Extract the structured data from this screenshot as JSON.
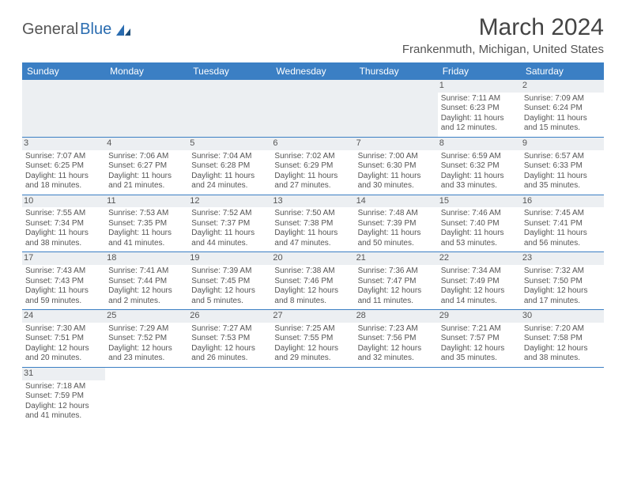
{
  "logo": {
    "part1": "General",
    "part2": "Blue"
  },
  "title": "March 2024",
  "location": "Frankenmuth, Michigan, United States",
  "header_bg": "#3b7fc4",
  "header_fg": "#ffffff",
  "daynum_bg": "#eceff2",
  "columns": [
    "Sunday",
    "Monday",
    "Tuesday",
    "Wednesday",
    "Thursday",
    "Friday",
    "Saturday"
  ],
  "weeks": [
    [
      null,
      null,
      null,
      null,
      null,
      {
        "n": "1",
        "sr": "Sunrise: 7:11 AM",
        "ss": "Sunset: 6:23 PM",
        "d1": "Daylight: 11 hours",
        "d2": "and 12 minutes."
      },
      {
        "n": "2",
        "sr": "Sunrise: 7:09 AM",
        "ss": "Sunset: 6:24 PM",
        "d1": "Daylight: 11 hours",
        "d2": "and 15 minutes."
      }
    ],
    [
      {
        "n": "3",
        "sr": "Sunrise: 7:07 AM",
        "ss": "Sunset: 6:25 PM",
        "d1": "Daylight: 11 hours",
        "d2": "and 18 minutes."
      },
      {
        "n": "4",
        "sr": "Sunrise: 7:06 AM",
        "ss": "Sunset: 6:27 PM",
        "d1": "Daylight: 11 hours",
        "d2": "and 21 minutes."
      },
      {
        "n": "5",
        "sr": "Sunrise: 7:04 AM",
        "ss": "Sunset: 6:28 PM",
        "d1": "Daylight: 11 hours",
        "d2": "and 24 minutes."
      },
      {
        "n": "6",
        "sr": "Sunrise: 7:02 AM",
        "ss": "Sunset: 6:29 PM",
        "d1": "Daylight: 11 hours",
        "d2": "and 27 minutes."
      },
      {
        "n": "7",
        "sr": "Sunrise: 7:00 AM",
        "ss": "Sunset: 6:30 PM",
        "d1": "Daylight: 11 hours",
        "d2": "and 30 minutes."
      },
      {
        "n": "8",
        "sr": "Sunrise: 6:59 AM",
        "ss": "Sunset: 6:32 PM",
        "d1": "Daylight: 11 hours",
        "d2": "and 33 minutes."
      },
      {
        "n": "9",
        "sr": "Sunrise: 6:57 AM",
        "ss": "Sunset: 6:33 PM",
        "d1": "Daylight: 11 hours",
        "d2": "and 35 minutes."
      }
    ],
    [
      {
        "n": "10",
        "sr": "Sunrise: 7:55 AM",
        "ss": "Sunset: 7:34 PM",
        "d1": "Daylight: 11 hours",
        "d2": "and 38 minutes."
      },
      {
        "n": "11",
        "sr": "Sunrise: 7:53 AM",
        "ss": "Sunset: 7:35 PM",
        "d1": "Daylight: 11 hours",
        "d2": "and 41 minutes."
      },
      {
        "n": "12",
        "sr": "Sunrise: 7:52 AM",
        "ss": "Sunset: 7:37 PM",
        "d1": "Daylight: 11 hours",
        "d2": "and 44 minutes."
      },
      {
        "n": "13",
        "sr": "Sunrise: 7:50 AM",
        "ss": "Sunset: 7:38 PM",
        "d1": "Daylight: 11 hours",
        "d2": "and 47 minutes."
      },
      {
        "n": "14",
        "sr": "Sunrise: 7:48 AM",
        "ss": "Sunset: 7:39 PM",
        "d1": "Daylight: 11 hours",
        "d2": "and 50 minutes."
      },
      {
        "n": "15",
        "sr": "Sunrise: 7:46 AM",
        "ss": "Sunset: 7:40 PM",
        "d1": "Daylight: 11 hours",
        "d2": "and 53 minutes."
      },
      {
        "n": "16",
        "sr": "Sunrise: 7:45 AM",
        "ss": "Sunset: 7:41 PM",
        "d1": "Daylight: 11 hours",
        "d2": "and 56 minutes."
      }
    ],
    [
      {
        "n": "17",
        "sr": "Sunrise: 7:43 AM",
        "ss": "Sunset: 7:43 PM",
        "d1": "Daylight: 11 hours",
        "d2": "and 59 minutes."
      },
      {
        "n": "18",
        "sr": "Sunrise: 7:41 AM",
        "ss": "Sunset: 7:44 PM",
        "d1": "Daylight: 12 hours",
        "d2": "and 2 minutes."
      },
      {
        "n": "19",
        "sr": "Sunrise: 7:39 AM",
        "ss": "Sunset: 7:45 PM",
        "d1": "Daylight: 12 hours",
        "d2": "and 5 minutes."
      },
      {
        "n": "20",
        "sr": "Sunrise: 7:38 AM",
        "ss": "Sunset: 7:46 PM",
        "d1": "Daylight: 12 hours",
        "d2": "and 8 minutes."
      },
      {
        "n": "21",
        "sr": "Sunrise: 7:36 AM",
        "ss": "Sunset: 7:47 PM",
        "d1": "Daylight: 12 hours",
        "d2": "and 11 minutes."
      },
      {
        "n": "22",
        "sr": "Sunrise: 7:34 AM",
        "ss": "Sunset: 7:49 PM",
        "d1": "Daylight: 12 hours",
        "d2": "and 14 minutes."
      },
      {
        "n": "23",
        "sr": "Sunrise: 7:32 AM",
        "ss": "Sunset: 7:50 PM",
        "d1": "Daylight: 12 hours",
        "d2": "and 17 minutes."
      }
    ],
    [
      {
        "n": "24",
        "sr": "Sunrise: 7:30 AM",
        "ss": "Sunset: 7:51 PM",
        "d1": "Daylight: 12 hours",
        "d2": "and 20 minutes."
      },
      {
        "n": "25",
        "sr": "Sunrise: 7:29 AM",
        "ss": "Sunset: 7:52 PM",
        "d1": "Daylight: 12 hours",
        "d2": "and 23 minutes."
      },
      {
        "n": "26",
        "sr": "Sunrise: 7:27 AM",
        "ss": "Sunset: 7:53 PM",
        "d1": "Daylight: 12 hours",
        "d2": "and 26 minutes."
      },
      {
        "n": "27",
        "sr": "Sunrise: 7:25 AM",
        "ss": "Sunset: 7:55 PM",
        "d1": "Daylight: 12 hours",
        "d2": "and 29 minutes."
      },
      {
        "n": "28",
        "sr": "Sunrise: 7:23 AM",
        "ss": "Sunset: 7:56 PM",
        "d1": "Daylight: 12 hours",
        "d2": "and 32 minutes."
      },
      {
        "n": "29",
        "sr": "Sunrise: 7:21 AM",
        "ss": "Sunset: 7:57 PM",
        "d1": "Daylight: 12 hours",
        "d2": "and 35 minutes."
      },
      {
        "n": "30",
        "sr": "Sunrise: 7:20 AM",
        "ss": "Sunset: 7:58 PM",
        "d1": "Daylight: 12 hours",
        "d2": "and 38 minutes."
      }
    ],
    [
      {
        "n": "31",
        "sr": "Sunrise: 7:18 AM",
        "ss": "Sunset: 7:59 PM",
        "d1": "Daylight: 12 hours",
        "d2": "and 41 minutes."
      },
      null,
      null,
      null,
      null,
      null,
      null
    ]
  ]
}
